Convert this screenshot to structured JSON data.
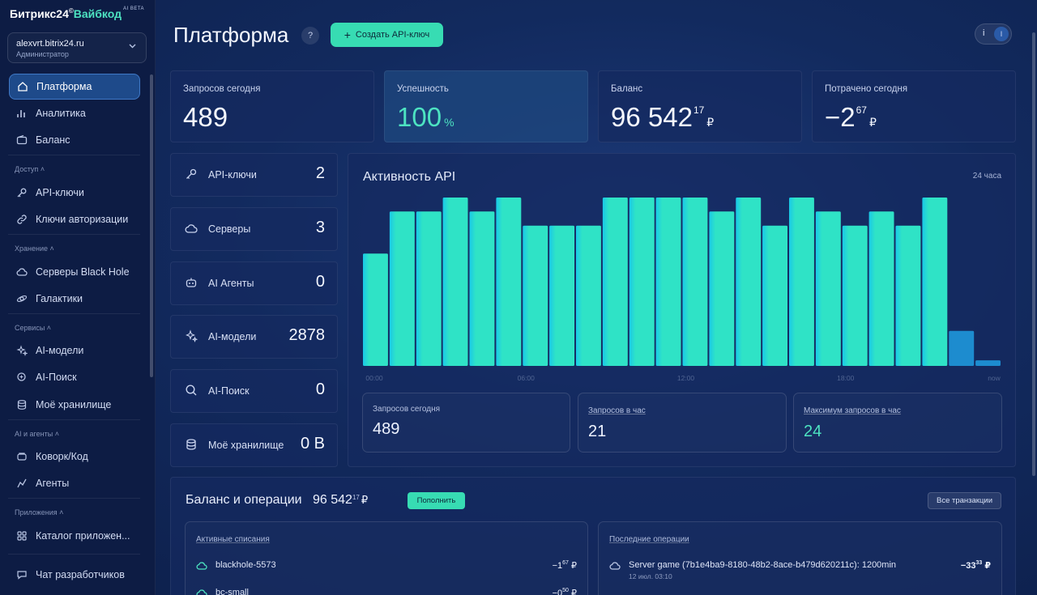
{
  "brand": {
    "name_part1": "Битрикс24",
    "reg": "©",
    "name_part2": "Вайбкод",
    "beta": "AI BETA"
  },
  "account": {
    "domain": "alexvrt.bitrix24.ru",
    "role": "Администратор"
  },
  "nav": {
    "main": [
      {
        "label": "Платформа",
        "icon": "platform-icon",
        "active": true
      },
      {
        "label": "Аналитика",
        "icon": "analytics-icon"
      },
      {
        "label": "Баланс",
        "icon": "wallet-icon"
      }
    ],
    "sections": [
      {
        "title": "Доступ",
        "items": [
          {
            "label": "API-ключи",
            "icon": "key-icon"
          },
          {
            "label": "Ключи авторизации",
            "icon": "link-icon"
          }
        ]
      },
      {
        "title": "Хранение",
        "items": [
          {
            "label": "Серверы Black Hole",
            "icon": "cloud-icon"
          },
          {
            "label": "Галактики",
            "icon": "galaxy-icon"
          }
        ]
      },
      {
        "title": "Сервисы",
        "items": [
          {
            "label": "AI-модели",
            "icon": "sparkle-icon"
          },
          {
            "label": "AI-Поиск",
            "icon": "ai-search-icon"
          },
          {
            "label": "Моё хранилище",
            "icon": "database-icon"
          }
        ]
      },
      {
        "title": "AI и агенты",
        "items": [
          {
            "label": "Коворк/Код",
            "icon": "cowork-icon"
          },
          {
            "label": "Агенты",
            "icon": "agents-icon"
          }
        ]
      },
      {
        "title": "Приложения",
        "items": [
          {
            "label": "Каталог приложен...",
            "icon": "apps-icon"
          }
        ]
      }
    ],
    "footer": {
      "label": "Чат разработчиков",
      "icon": "chat-icon"
    }
  },
  "header": {
    "title": "Платформа",
    "help": "?",
    "create_button": "Создать API-ключ",
    "toggle_letter": "i",
    "toggle_knob": "I"
  },
  "stats": {
    "requests_today": {
      "label": "Запросов сегодня",
      "value": "489"
    },
    "success": {
      "label": "Успешность",
      "value": "100",
      "unit": "%"
    },
    "balance": {
      "label": "Баланс",
      "value": "96 542",
      "cents": "17",
      "currency": "₽"
    },
    "spent_today": {
      "label": "Потрачено сегодня",
      "value": "−2",
      "cents": "67",
      "currency": "₽"
    }
  },
  "quick_links": [
    {
      "label": "API-ключи",
      "count": "2",
      "icon": "key-icon"
    },
    {
      "label": "Серверы",
      "count": "3",
      "icon": "cloud-icon"
    },
    {
      "label": "AI Агенты",
      "count": "0",
      "icon": "agents-icon"
    },
    {
      "label": "AI-модели",
      "count": "2878",
      "icon": "sparkle-icon"
    },
    {
      "label": "AI-Поиск",
      "count": "0",
      "icon": "search-icon"
    },
    {
      "label": "Моё хранилище",
      "count": "0 B",
      "icon": "database-icon"
    }
  ],
  "activity": {
    "title": "Активность API",
    "range": "24 часа",
    "summary": [
      {
        "label": "Запросов сегодня",
        "value": "489"
      },
      {
        "label": "Запросов в час",
        "value": "21"
      },
      {
        "label": "Максимум запросов в час",
        "value": "24"
      }
    ]
  },
  "chart_data": {
    "type": "bar",
    "title": "Активность API",
    "x_ticks": [
      "00:00",
      "06:00",
      "12:00",
      "18:00",
      "now"
    ],
    "values": [
      16,
      22,
      22,
      24,
      22,
      24,
      20,
      20,
      20,
      24,
      24,
      24,
      24,
      22,
      24,
      20,
      24,
      22,
      20,
      22,
      20,
      24,
      5,
      0.8
    ],
    "ylim": [
      0,
      24
    ],
    "colors": {
      "primary": "#2fe3c6",
      "gradient_start": "#19c9e8",
      "recent": "#1d8ccf"
    },
    "grid": false
  },
  "balance_section": {
    "title": "Баланс и операции",
    "amount": "96 542",
    "cents": "17",
    "currency": "₽",
    "topup": "Пополнить",
    "all_tx": "Все транзакции",
    "active_title": "Активные списания",
    "active": [
      {
        "name": "blackhole-5573",
        "amount": "−1",
        "cents": "67",
        "currency": "₽"
      },
      {
        "name": "bc-small",
        "amount": "−0",
        "cents": "50",
        "currency": "₽"
      }
    ],
    "recent_title": "Последние операции",
    "recent": [
      {
        "name": "Server game (7b1e4ba9-8180-48b2-8ace-b479d620211c): 1200min",
        "date": "12 июл. 03:10",
        "amount": "−33",
        "cents": "33",
        "currency": "₽"
      }
    ]
  },
  "colors": {
    "accent": "#37dcb3",
    "teal_text": "#4de3c1",
    "sidebar_bg": "#0d1c44",
    "active_nav": "#1e4a8a"
  }
}
